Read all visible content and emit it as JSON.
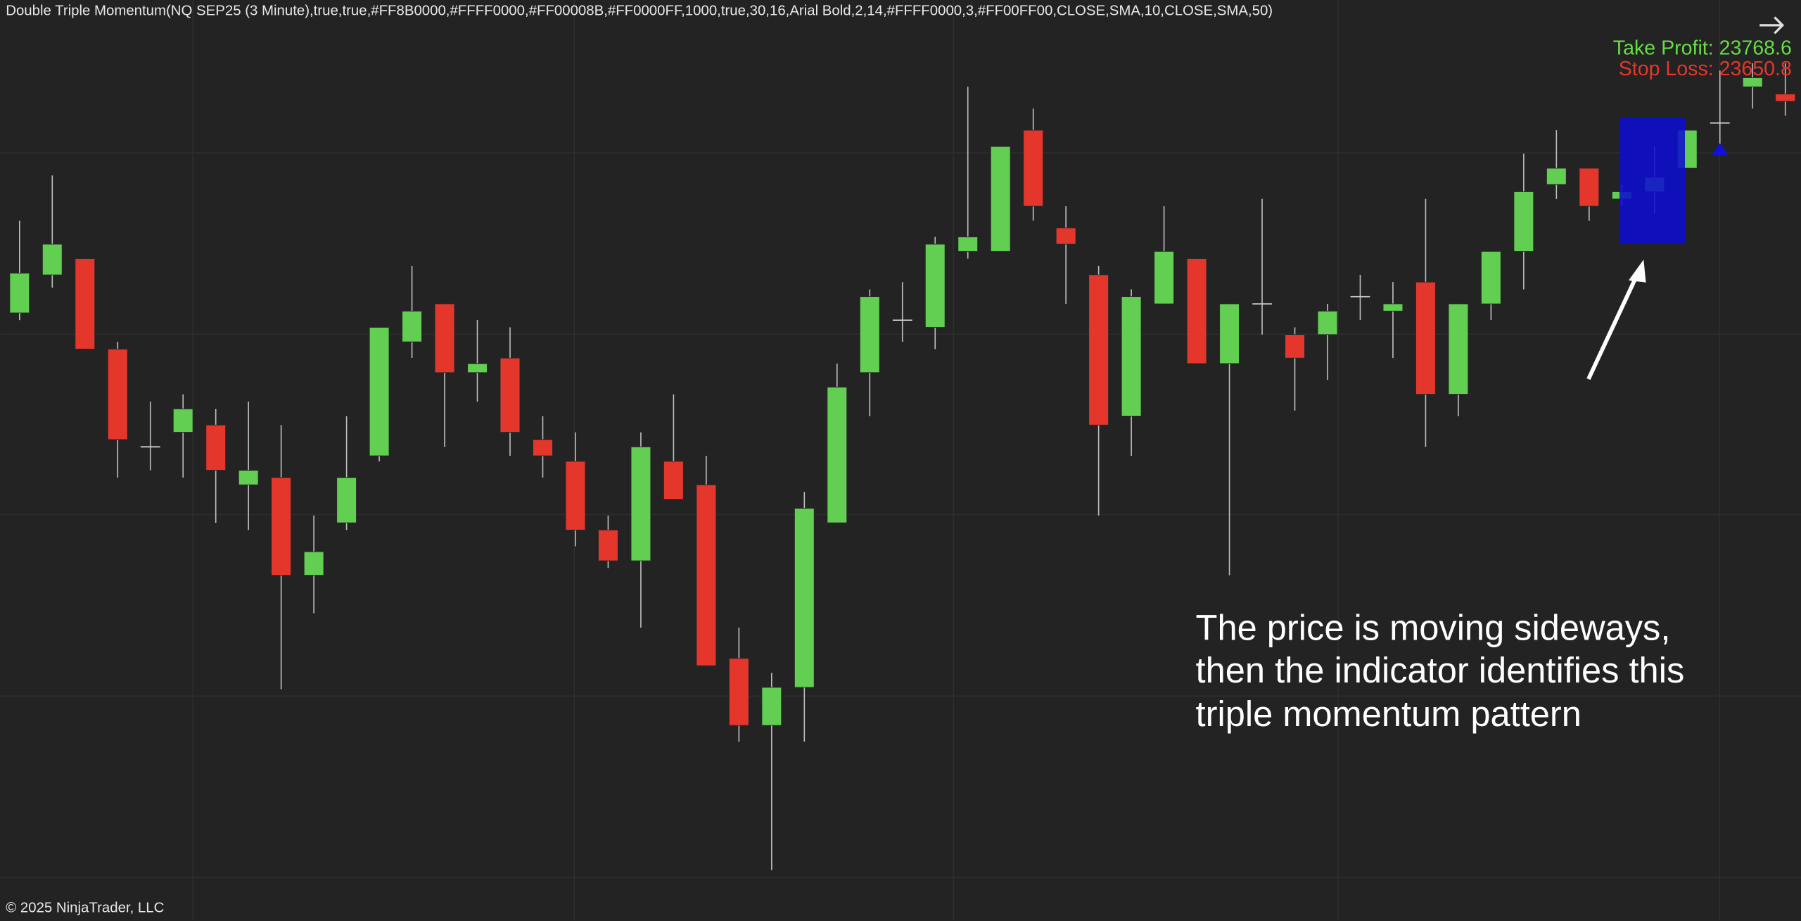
{
  "header": {
    "title": "Double Triple Momentum(NQ SEP25 (3 Minute),true,true,#FF8B0000,#FFFF0000,#FF00008B,#FF0000FF,1000,true,30,16,Arial Bold,2,14,#FFFF0000,3,#FF00FF00,CLOSE,SMA,10,CLOSE,SMA,50)"
  },
  "chart_data": {
    "type": "candlestick",
    "ylim": [
      23570,
      23697
    ],
    "up_color": "#62cf53",
    "down_color": "#e5362c",
    "open": [
      23653.75,
      23659,
      23661.25,
      23648.75,
      23635.25,
      23637.25,
      23638.25,
      23630,
      23631,
      23617.5,
      23624.75,
      23634,
      23649.75,
      23655,
      23645.5,
      23647.5,
      23636.25,
      23633.25,
      23623.75,
      23619.5,
      23633.25,
      23630,
      23606,
      23596.75,
      23602,
      23624.75,
      23645.5,
      23652.75,
      23651.75,
      23662.25,
      23662.25,
      23679,
      23665.5,
      23659,
      23639.5,
      23655,
      23661.25,
      23646.75,
      23655,
      23650.75,
      23650.75,
      23656,
      23654,
      23658,
      23642.5,
      23655,
      23662.25,
      23671.5,
      23673.75,
      23669.5,
      23670.5,
      23673.75,
      23680,
      23685,
      23684
    ],
    "high": [
      23666.5,
      23672.75,
      23661.25,
      23649.75,
      23641.5,
      23642.5,
      23640.5,
      23641.5,
      23638.25,
      23625.75,
      23639.5,
      23651.75,
      23660.25,
      23655,
      23652.75,
      23651.75,
      23639.5,
      23637.25,
      23625.75,
      23637.25,
      23642.5,
      23634,
      23610.25,
      23604,
      23629,
      23646.75,
      23657,
      23658,
      23664.25,
      23685,
      23676.75,
      23682,
      23668.5,
      23660.25,
      23657,
      23668.5,
      23661.25,
      23655,
      23669.5,
      23651.75,
      23655,
      23659,
      23658,
      23669.5,
      23655,
      23662.25,
      23675.75,
      23679,
      23673.75,
      23671.5,
      23676.75,
      23679,
      23687.25,
      23688.25,
      23688.25
    ],
    "low": [
      23652.75,
      23657.25,
      23648.75,
      23631,
      23632,
      23631,
      23624.75,
      23623.75,
      23601.75,
      23612.25,
      23623.75,
      23633.25,
      23647.5,
      23635.25,
      23641.5,
      23634,
      23631,
      23621.5,
      23618.5,
      23610.25,
      23628,
      23605,
      23594.5,
      23576.75,
      23594.5,
      23624.75,
      23639.5,
      23649.75,
      23648.75,
      23661.25,
      23662.25,
      23666.5,
      23655,
      23625.75,
      23634,
      23655,
      23646.75,
      23617.5,
      23650.75,
      23640.25,
      23644.5,
      23652.75,
      23647.5,
      23635.25,
      23639.5,
      23652.75,
      23657,
      23669.5,
      23666.5,
      23668.5,
      23667.5,
      23673.75,
      23675.75,
      23682,
      23681
    ],
    "close": [
      23659.25,
      23663.25,
      23648.75,
      23636.25,
      23635.25,
      23640.5,
      23632,
      23632,
      23617.5,
      23620.75,
      23631,
      23651.75,
      23654,
      23645.5,
      23646.75,
      23637.25,
      23634,
      23623.75,
      23619.5,
      23635.25,
      23628,
      23605,
      23596.75,
      23602,
      23626.75,
      23643.5,
      23656,
      23652.75,
      23663.25,
      23664.25,
      23676.75,
      23668.5,
      23663.25,
      23638.25,
      23656,
      23662.25,
      23646.75,
      23655,
      23655,
      23647.5,
      23654,
      23656,
      23655,
      23642.5,
      23655,
      23662.25,
      23670.5,
      23673.75,
      23668.5,
      23670.5,
      23672.5,
      23679,
      23680,
      23686.25,
      23683
    ],
    "pattern_zone": {
      "top": 23680.75,
      "bottom": 23663.25,
      "color": "#0e0ecf"
    },
    "signal": {
      "value": 23676.25,
      "color": "#1010e0"
    },
    "take_profit_label": "Take Profit: 23768.6",
    "stop_loss_label": "Stop Loss: 23650.8",
    "annotation": [
      "The price is moving sideways,",
      "then the indicator identifies this",
      "triple momentum pattern"
    ]
  },
  "footer": "© 2025 NinjaTrader, LLC"
}
